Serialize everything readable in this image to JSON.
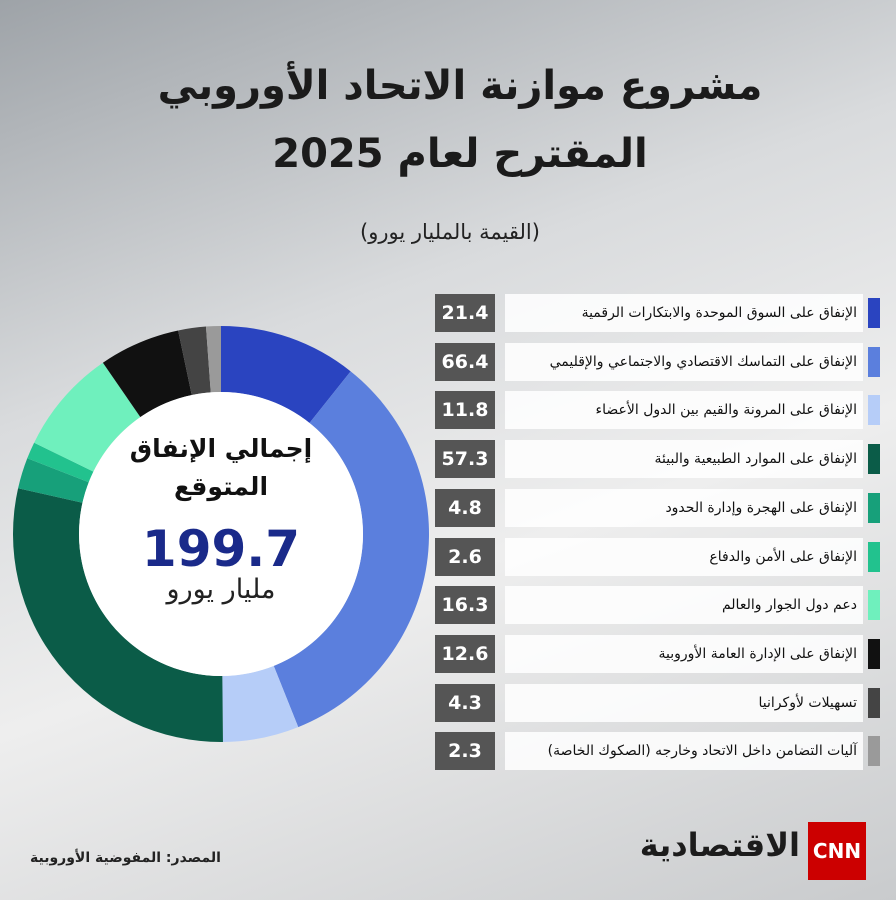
{
  "chart_data": {
    "type": "donut",
    "title": "مشروع موازنة الاتحاد الأوروبي المقترح لعام 2025",
    "subtitle": "(القيمة بالمليار يورو)",
    "center_label": "إجمالي الإنفاق المتوقع",
    "total": 199.7,
    "total_unit": "مليار يورو",
    "categories": [
      "الإنفاق على السوق الموحدة والابتكارات الرقمية",
      "الإنفاق على التماسك الاقتصادي والاجتماعي والإقليمي",
      "الإنفاق على المرونة والقيم بين الدول الأعضاء",
      "الإنفاق على الموارد الطبيعية والبيئة",
      "الإنفاق على الهجرة وإدارة الحدود",
      "الإنفاق على الأمن والدفاع",
      "دعم دول الجوار والعالم",
      "الإنفاق على الإدارة العامة الأوروبية",
      "تسهيلات لأوكرانيا",
      "آليات التضامن داخل الاتحاد وخارجه (الصكوك الخاصة)"
    ],
    "values": [
      21.4,
      66.4,
      11.8,
      57.3,
      4.8,
      2.6,
      16.3,
      12.6,
      4.3,
      2.3
    ],
    "colors": [
      "#2a44c0",
      "#5b7fdd",
      "#b6cdf8",
      "#0b5c48",
      "#17a07a",
      "#22c28e",
      "#6ff0bd",
      "#111111",
      "#444444",
      "#9a9a9a"
    ]
  },
  "source": "المصدر: المفوضية الأوروبية",
  "brand": {
    "network": "CNN",
    "name": "الاقتصادية"
  }
}
